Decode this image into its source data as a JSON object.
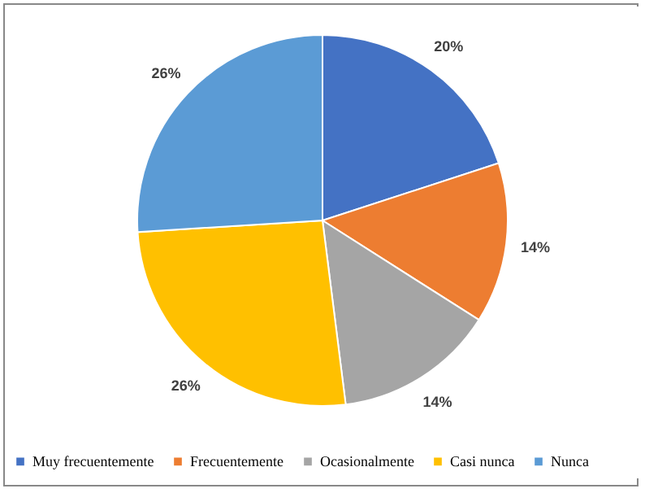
{
  "chart_data": {
    "type": "pie",
    "categories": [
      "Muy frecuentemente",
      "Frecuentemente",
      "Ocasionalmente",
      "Casi nunca",
      "Nunca"
    ],
    "values": [
      20,
      14,
      14,
      26,
      26
    ],
    "colors": [
      "#4472c4",
      "#ed7d31",
      "#a5a5a5",
      "#ffc000",
      "#5b9bd5"
    ],
    "value_labels": [
      "20%",
      "14%",
      "14%",
      "26%",
      "26%"
    ],
    "legend": "bottom"
  }
}
